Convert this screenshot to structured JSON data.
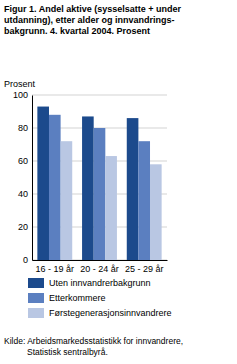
{
  "chart_data": {
    "type": "bar",
    "title": [
      "Figur 1. Andel aktive (sysselsatte + under",
      "utdanning), etter alder og innvandrings-",
      "bakgrunn. 4. kvartal 2004. Prosent"
    ],
    "y_label": "Prosent",
    "categories": [
      "16 - 19 år",
      "20 - 24 år",
      "25 - 29 år"
    ],
    "series": [
      {
        "name": "Uten innvandrerbakgrunn",
        "color": "#1c4a8c",
        "values": [
          93,
          87,
          86
        ]
      },
      {
        "name": "Etterkommere",
        "color": "#5b7fc0",
        "values": [
          88,
          80,
          72
        ]
      },
      {
        "name": "Førstegenerasjonsinnvandrere",
        "color": "#b9c7e3",
        "values": [
          72,
          63,
          58
        ]
      }
    ],
    "ylim": [
      0,
      100
    ],
    "yticks": [
      0,
      20,
      40,
      60,
      80,
      100
    ],
    "grid": true,
    "legend": "bottom",
    "source": [
      "Kilde: Arbeidsmarkedsstatistikk for innvandrere,",
      "Statistisk sentralbyrå."
    ]
  }
}
